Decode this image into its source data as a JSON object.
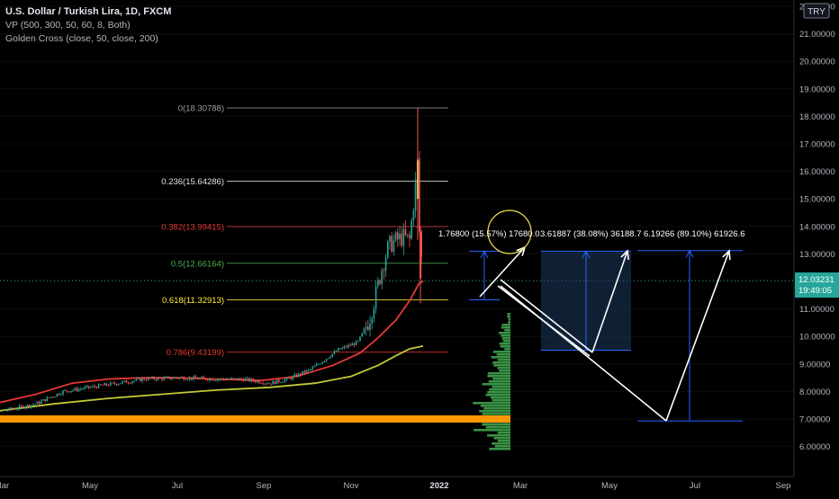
{
  "header": {
    "title": "U.S. Dollar / Turkish Lira, 1D, FXCM",
    "indicator_vp": "VP (500, 300, 50, 60, 8, Both)",
    "indicator_gc": "Golden Cross (close, 50, close, 200)"
  },
  "currency_badge": "TRY",
  "price_badge": {
    "price": "12.03231",
    "countdown": "19:49:05"
  },
  "colors": {
    "background": "#000000",
    "up_candle": "#26a69a",
    "down_candle": "#ef5350",
    "ma50": "#e53935",
    "ma200": "#c0ca33",
    "support": "#ff9800",
    "price_badge": "#26a69a",
    "volume_profile": "#4caf50"
  },
  "chart_data": {
    "type": "candlestick",
    "title": "U.S. Dollar / Turkish Lira, 1D, FXCM",
    "ylim": [
      5.5,
      22.5
    ],
    "y_ticks": [
      "6.00000",
      "7.00000",
      "8.00000",
      "9.00000",
      "10.00000",
      "11.00000",
      "12.00000",
      "13.00000",
      "14.00000",
      "15.00000",
      "16.00000",
      "17.00000",
      "18.00000",
      "19.00000",
      "20.00000",
      "21.00000",
      "22.00000"
    ],
    "x_ticks": [
      "Mar",
      "May",
      "Jul",
      "Sep",
      "Nov",
      "2022",
      "Mar",
      "May",
      "Jul",
      "Sep"
    ],
    "price_trajectory": [
      {
        "date": "2021-03",
        "close": 7.3
      },
      {
        "date": "2021-04",
        "close": 8.1
      },
      {
        "date": "2021-05",
        "close": 8.4
      },
      {
        "date": "2021-06",
        "close": 8.6
      },
      {
        "date": "2021-07",
        "close": 8.6
      },
      {
        "date": "2021-08",
        "close": 8.5
      },
      {
        "date": "2021-09",
        "close": 8.5
      },
      {
        "date": "2021-10",
        "close": 9.4
      },
      {
        "date": "2021-11-15",
        "close": 10.9
      },
      {
        "date": "2021-11-25",
        "close": 13.4
      },
      {
        "date": "2021-12-10",
        "close": 13.7
      },
      {
        "date": "2021-12-20",
        "close": 18.3
      },
      {
        "date": "2021-12-24",
        "close": 12.0
      }
    ],
    "ma50": [
      {
        "date": "2021-03",
        "value": 7.6
      },
      {
        "date": "2021-06",
        "value": 8.5
      },
      {
        "date": "2021-09",
        "value": 8.4
      },
      {
        "date": "2021-11",
        "value": 9.3
      },
      {
        "date": "2021-12",
        "value": 11.7
      }
    ],
    "ma200": [
      {
        "date": "2021-03",
        "value": 7.35
      },
      {
        "date": "2021-06",
        "value": 7.9
      },
      {
        "date": "2021-09",
        "value": 8.2
      },
      {
        "date": "2021-11",
        "value": 8.9
      },
      {
        "date": "2021-12",
        "value": 9.6
      }
    ],
    "fibonacci": [
      {
        "label": "0(18.30788)",
        "level": 18.30788,
        "color": "#9e9e9e"
      },
      {
        "label": "0.236(15.64286)",
        "level": 15.64286,
        "color": "#e0e0e0"
      },
      {
        "label": "0.382(13.99415)",
        "level": 13.99415,
        "color": "#e53935"
      },
      {
        "label": "0.5(12.66164)",
        "level": 12.66164,
        "color": "#4caf50"
      },
      {
        "label": "0.618(11.32913)",
        "level": 11.32913,
        "color": "#ffeb3b"
      },
      {
        "label": "0.786(9.43199)",
        "level": 9.43199,
        "color": "#e53935"
      }
    ],
    "support_level": 7.0,
    "annotations": [
      {
        "text": "1.76800 (15.57%) 17680.0",
        "from": 11.33,
        "to": 13.1
      },
      {
        "text": "3.61887 (38.08%) 36188.7",
        "from": 9.5,
        "to": 13.1
      },
      {
        "text": "6.19266 (89.10%) 61926.6",
        "from": 6.93,
        "to": 13.12
      }
    ]
  }
}
